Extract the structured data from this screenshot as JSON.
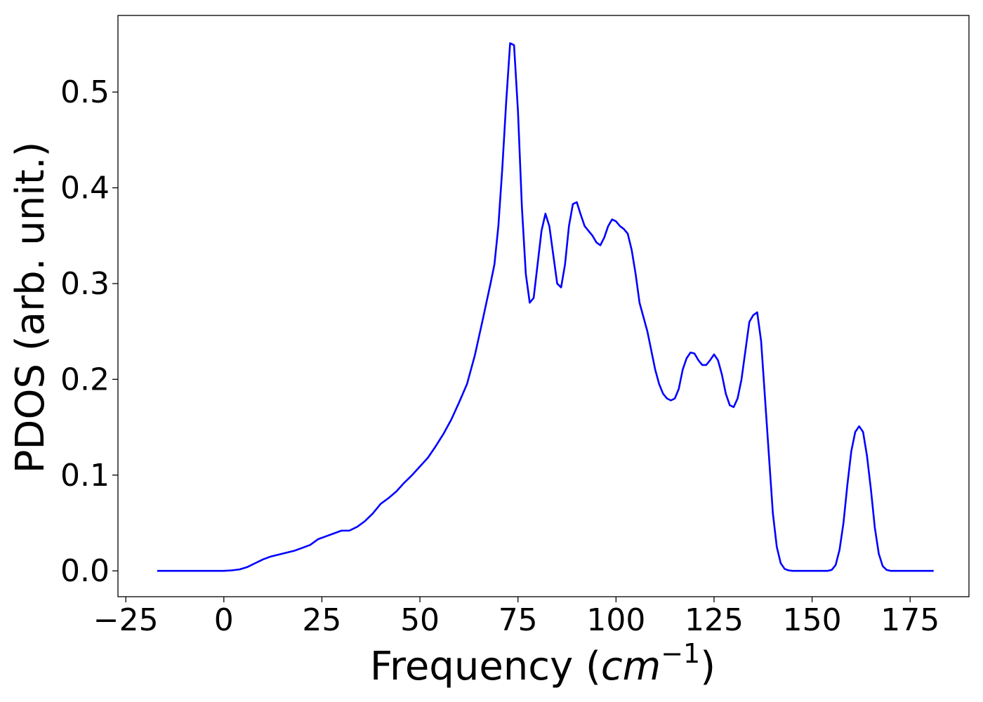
{
  "chart_data": {
    "type": "line",
    "xlabel": "Frequency (cm⁻¹)",
    "xlabel_parts": {
      "prefix": "Frequency (",
      "unit_base": "cm",
      "unit_exp": "−1",
      "suffix": ")"
    },
    "ylabel": "PDOS (arb. unit.)",
    "xlim": [
      -27,
      190
    ],
    "ylim": [
      -0.027,
      0.58
    ],
    "xticks": [
      -25,
      0,
      25,
      50,
      75,
      100,
      125,
      150,
      175
    ],
    "xtick_labels": [
      "−25",
      "0",
      "25",
      "50",
      "75",
      "100",
      "125",
      "150",
      "175"
    ],
    "yticks": [
      0.0,
      0.1,
      0.2,
      0.3,
      0.4,
      0.5
    ],
    "ytick_labels": [
      "0.0",
      "0.1",
      "0.2",
      "0.3",
      "0.4",
      "0.5"
    ],
    "grid": false,
    "legend": "none",
    "series": [
      {
        "color": "#0000ff",
        "x": [
          -17,
          -10,
          -5,
          0,
          2,
          4,
          6,
          8,
          10,
          12,
          14,
          16,
          18,
          20,
          22,
          24,
          26,
          28,
          30,
          32,
          34,
          36,
          38,
          40,
          42,
          44,
          46,
          48,
          50,
          52,
          54,
          56,
          58,
          60,
          62,
          64,
          66,
          68,
          69,
          70,
          71,
          72,
          73,
          74,
          75,
          76,
          77,
          78,
          79,
          80,
          81,
          82,
          83,
          84,
          85,
          86,
          87,
          88,
          89,
          90,
          91,
          92,
          93,
          94,
          95,
          96,
          97,
          98,
          99,
          100,
          101,
          102,
          103,
          104,
          105,
          106,
          108,
          110,
          111,
          112,
          113,
          114,
          115,
          116,
          117,
          118,
          119,
          120,
          121,
          122,
          123,
          124,
          125,
          126,
          127,
          128,
          129,
          130,
          131,
          132,
          133,
          134,
          135,
          136,
          137,
          138,
          139,
          140,
          141,
          142,
          143,
          144,
          145,
          147,
          150,
          152,
          154,
          155,
          156,
          157,
          158,
          159,
          160,
          161,
          162,
          163,
          164,
          165,
          166,
          167,
          168,
          169,
          170,
          173,
          177,
          181
        ],
        "y": [
          0.0,
          0.0,
          0.0,
          0.0,
          0.0005,
          0.0015,
          0.004,
          0.008,
          0.012,
          0.015,
          0.017,
          0.019,
          0.021,
          0.024,
          0.027,
          0.033,
          0.036,
          0.039,
          0.042,
          0.042,
          0.046,
          0.052,
          0.06,
          0.07,
          0.076,
          0.083,
          0.092,
          0.1,
          0.109,
          0.118,
          0.13,
          0.143,
          0.158,
          0.176,
          0.195,
          0.225,
          0.262,
          0.3,
          0.32,
          0.36,
          0.42,
          0.49,
          0.551,
          0.549,
          0.48,
          0.38,
          0.31,
          0.28,
          0.285,
          0.32,
          0.355,
          0.373,
          0.36,
          0.33,
          0.3,
          0.296,
          0.32,
          0.36,
          0.383,
          0.385,
          0.372,
          0.36,
          0.355,
          0.35,
          0.343,
          0.34,
          0.348,
          0.36,
          0.367,
          0.365,
          0.36,
          0.357,
          0.352,
          0.335,
          0.31,
          0.28,
          0.25,
          0.21,
          0.195,
          0.185,
          0.18,
          0.178,
          0.18,
          0.19,
          0.21,
          0.222,
          0.228,
          0.227,
          0.22,
          0.215,
          0.215,
          0.22,
          0.226,
          0.22,
          0.205,
          0.185,
          0.173,
          0.171,
          0.18,
          0.2,
          0.23,
          0.26,
          0.267,
          0.27,
          0.24,
          0.18,
          0.12,
          0.06,
          0.025,
          0.008,
          0.002,
          0.0005,
          0.0,
          0.0,
          0.0,
          0.0,
          0.0,
          0.001,
          0.006,
          0.022,
          0.05,
          0.09,
          0.125,
          0.145,
          0.151,
          0.145,
          0.12,
          0.085,
          0.045,
          0.018,
          0.005,
          0.001,
          0.0,
          0.0,
          0.0,
          0.0
        ]
      }
    ]
  }
}
